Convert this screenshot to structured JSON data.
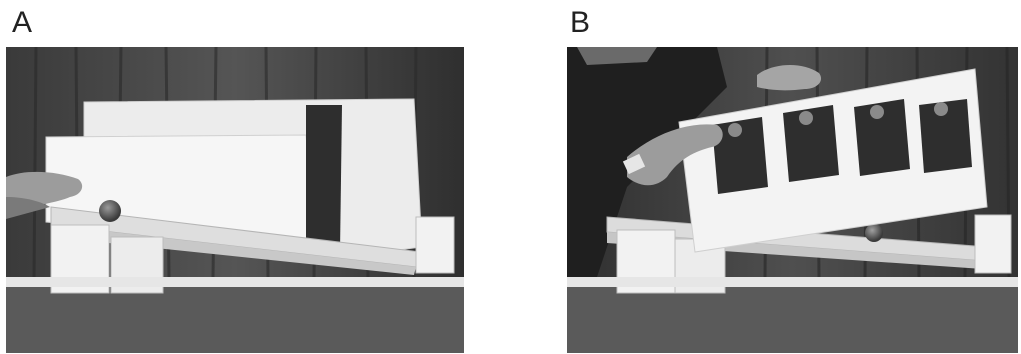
{
  "panels": [
    {
      "label": "A",
      "photo": "ball-ramp-apparatus-photo"
    },
    {
      "label": "B",
      "photo": "ramp-with-cards-photo"
    }
  ],
  "colors": {
    "background": "#ffffff",
    "curtain": "#4a4a4a",
    "board": "#e8e8e8",
    "card": "#333333"
  }
}
